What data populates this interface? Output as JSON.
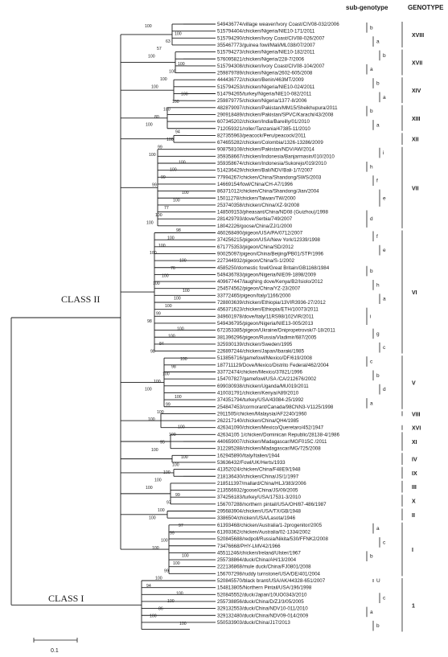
{
  "headers": {
    "subgenotype": "sub-genotype",
    "genotype": "GENOTYPE"
  },
  "classes": {
    "class2": "CLASS II",
    "class1": "CLASS I"
  },
  "scale_label": "0.1",
  "taxa": [
    "549436774/village weaver/Ivory Coast/CIV08-032/2006",
    "515794404/chicken/Nigeria/NIE10-171/2011",
    "515794290/chicken/Ivory Coast/CIV08-026/2007",
    "355467773/guinea fowl/Mali/ML038/07/2007",
    "515794273/chicken/Nigeria/NIE10-182/2011",
    "576095821/chicken/Nigeria/228-7/2006",
    "515794308/chicken/Ivory Coast/CIV08-104/2007",
    "259879789/chicken/Nigeria/2602-605/2008",
    "444436772/chicken/Benin/463MT/2009",
    "515794253/chicken/Nigeria/NIE10-024/2011",
    "514794265/turkey/Nigeria/NIE10-082/2011",
    "259879775/chicken/Nigeria/1377-8/2006",
    "482879097/chicken/Pakistan/MM15/Sheikhupura/2011",
    "290918489/chicken/Pakistan/SPVC/Karachi/43/2008",
    "607345202/chicken/India/Bareilly/01/2010",
    "712059321/roller/Tanzania/47385-11/2010",
    "827355963/peacock/Peru/peacock/2011",
    "674655282/chicken/Colombia/1326-13286/2009",
    "908758108/chicken/Pakistan/NDV/AW/2014",
    "359358667/chicken/Indonesia/Banjarmasin/010/2010",
    "359358674/chicken/Indonesia/Sukorejo/019/2010",
    "514236429/chicken/Bali/NDV/Bali-1/7/2007",
    "77994267/chicken/China/Shandong/SWS/2003",
    "14669154/fowl/China/CH-A7/1996",
    "86371012/chicken/China/Shandong/Jian/2004",
    "15011278/chicken/Taiwan/TW/2000",
    "253740358/chicken/China/XZ-9/2008",
    "148509153/pheasant/China/ND08 (Guizhou)/1998",
    "281429793/dove/Serbia/749/2007",
    "18042226/goose/China/ZJ/1/2000",
    "460268490/pigeon/USA/PA/0712/2007",
    "374256215/pigeon/USA/New York/12339/1998",
    "671775353/pigeon/China/SD/2012",
    "90025097/pigeon/China/Beijing/PB01/STP/1996",
    "227344932/pigeon/China/S-1/2002",
    "4585250/domestic fowl/Great Britain/GB1168/1984",
    "549436783/pigeon/Nigeria/NIE09-1898/2009",
    "409677447/laughing dove/Kenya/B2/Isiolo/2012",
    "254574562/pigeon/China/YZ-23/2007",
    "33772465/pigeon/Italy/1166/2000",
    "728803639/chicken/Ethiopia/13VIR3936-27/2012",
    "456371623/chicken/Ethiopia/ETH/10073/2011",
    "349601978/dove/Italy/11RS98/102VIR/2011",
    "549436795/pigeon/Nigeria/NIE13-005/2013",
    "672353385/pigeon/Ukraine/Dnipropetrovsk/7-18/2011",
    "381396296/pigeon/Russia/Vladimir/687/2005",
    "325930139/chicken/Sweden/1995",
    "226897244/chicken/Japan/Ibaraki/1985",
    "513856716/gamefowl/Mexico/DF/619/2008",
    "187711129/Dove/Mexico/Distrito Federal/462/2004",
    "33772474/chicken/Mexico/37821/1996",
    "154707827/gamefowl/USA /CA/212676/2002",
    "699030938/chicken/Uganda/MU019/2011",
    "410031791/chicken/Kenya/A89/2010",
    "374351794/turkey/USA/43084-25/1992",
    "254847453/cormorant/Canada/98CNN3-V1125/1998",
    "2911505/chicken/Malaysia/AF2240/1960",
    "262217140/chicken/China/QH4/1985",
    "426341090/chicken/Mexico/Queretaro/452/1947",
    "42634105 1/chicken/Dominican Republic/28138-4/1986",
    "440659007/chicken/Madagascar/MGF015C /2011",
    "312285288/chicken/Madagascar/MG/725/2008",
    "162945890/Italy/Italien/1944",
    "53636432/Fowl/UK/Herts/1933",
    "41352024/chicken/China/F48E9/1948",
    "218136430/chicken/China/JS/1/1997",
    "218511397/mallard/China/HLJ/383/2006",
    "213556932/goose/China/JS/09/2005",
    "374256183/turkey/USA/17531-3/2010",
    "156707288/northern pintail/USA/OH/87-486/1987",
    "295683904/chicken/USA/TX/GB/1948",
    "3386504/chicken/USA/Lasota/1946",
    "61393468/chicken/Australia/1-2progenitor/2005",
    "61393362/chicken/Australia/02-1334/2002",
    "520845688/redpoll/Russia/Nikita/530/FFNK2/2008",
    "73476668/PHY-LMV42/1966",
    "45511246/chicken/Ireland/Ulster/1967",
    "255738864/duck/China/AH/13/2004",
    "222136868/mule duck/China/FJ0801/2008",
    "156707298/ruddy turnstone/USA/DE/401/2004",
    "520845570/black brant/USA/AK/44328-651/2007",
    "154813805/Northern Pintail/USA/196/1998",
    "520845552/duck/Japan/10UO0343/2010",
    "255738856/duck/China/D/ZJ/3/05/2005",
    "329132553/duck/China/NDV10-011/2010",
    "329132480/duck/China/NDV09-014/2009",
    "550533903/duck/China/J17/2013"
  ],
  "bootstrap": [
    "100",
    "100",
    "63",
    "57",
    "100",
    "100",
    "100",
    "100",
    "100",
    "100",
    "100",
    "100",
    "80",
    "100",
    "94",
    "100",
    "99",
    "100",
    "100",
    "100",
    "99",
    "99",
    "100",
    "100",
    "77",
    "100",
    "100",
    "98",
    "100",
    "100",
    "100",
    "100",
    "76",
    "100",
    "100",
    "100",
    "100",
    "100",
    "99",
    "98",
    "100",
    "100",
    "84",
    "98",
    "100",
    "98",
    "100",
    "100",
    "100",
    "100",
    "99",
    "100",
    "100",
    "100",
    "100",
    "95",
    "100",
    "100",
    "100",
    "100",
    "100",
    "100",
    "99",
    "97",
    "100",
    "100",
    "97",
    "99",
    "100",
    "100",
    "100",
    "100",
    "99",
    "100",
    "94",
    "100",
    "100",
    "86",
    "100",
    "100"
  ],
  "genotypes": [
    "XVIII",
    "XVII",
    "XIV",
    "XIII",
    "XII",
    "VII",
    "VI",
    "V",
    "VIII",
    "XVI",
    "XI",
    "IV",
    "IX",
    "III",
    "X",
    "II",
    "I",
    "1"
  ],
  "subgenotypes": [
    "b",
    "a",
    "b",
    "a",
    "b",
    "a",
    "b",
    "a",
    "i",
    "h",
    "f",
    "e",
    "d",
    "f",
    "e",
    "b",
    "h",
    "a",
    "i",
    "g",
    "c",
    "c",
    "b",
    "d",
    "a",
    "a",
    "c",
    "b",
    "U",
    "c",
    "a",
    "b"
  ]
}
